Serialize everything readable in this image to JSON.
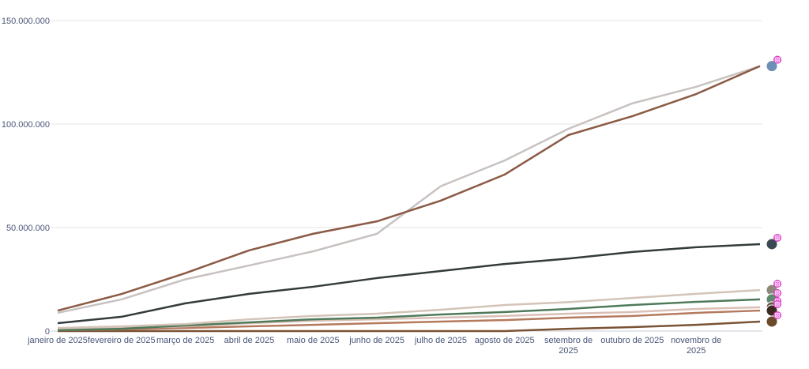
{
  "chart_data": {
    "type": "line",
    "title": "",
    "xlabel": "",
    "ylabel": "",
    "ylim": [
      0,
      150000000
    ],
    "y_ticks": [
      0,
      50000000,
      100000000,
      150000000
    ],
    "y_tick_labels": [
      "0",
      "50.000.000",
      "100.000.000",
      "150.000.000"
    ],
    "grid": true,
    "categories": [
      "janeiro de 2025",
      "fevereiro de 2025",
      "março de 2025",
      "abril de 2025",
      "maio de 2025",
      "junho de 2025",
      "julho de 2025",
      "agosto de 2025",
      "setembro de 2025",
      "outubro de 2025",
      "novembro de 2025",
      ""
    ],
    "category_label_lines": [
      [
        "janeiro de 2025"
      ],
      [
        "fevereiro de 2025"
      ],
      [
        "março de 2025"
      ],
      [
        "abril de 2025"
      ],
      [
        "maio de 2025"
      ],
      [
        "junho de 2025"
      ],
      [
        "julho de 2025"
      ],
      [
        "agosto de 2025"
      ],
      [
        "setembro de",
        "2025"
      ],
      [
        "outubro de 2025"
      ],
      [
        "novembro de",
        "2025"
      ],
      []
    ],
    "series": [
      {
        "color": "#8b5a45",
        "avatar_color": "#6d8fb5",
        "values": [
          9900000,
          17900000,
          28000000,
          39000000,
          47000000,
          53000000,
          63000000,
          75600000,
          94700000,
          103800000,
          114500000,
          128000000
        ]
      },
      {
        "color": "#c8c2c0",
        "avatar_color": "#6d8fb5",
        "values": [
          8800000,
          15300000,
          25000000,
          31700000,
          38500000,
          47000000,
          70000000,
          82400000,
          97700000,
          110000000,
          118000000,
          128000000
        ]
      },
      {
        "color": "#333b3b",
        "avatar_color": "#3a4a55",
        "values": [
          3800000,
          6900000,
          13400000,
          18000000,
          21400000,
          25600000,
          29000000,
          32400000,
          35000000,
          38200000,
          40500000,
          42000000
        ]
      },
      {
        "color": "#d4c4b8",
        "avatar_color": "#8d8a7a",
        "values": [
          1500000,
          2300000,
          3400000,
          5700000,
          7300000,
          8400000,
          10300000,
          12600000,
          14000000,
          16000000,
          18000000,
          19800000
        ]
      },
      {
        "color": "#4f7a5a",
        "avatar_color": "#5c8a6a",
        "values": [
          400000,
          1100000,
          2700000,
          4200000,
          5700000,
          6500000,
          8000000,
          9200000,
          10700000,
          12600000,
          14100000,
          15300000
        ]
      },
      {
        "color": "#d9bfb6",
        "avatar_color": "#6a5a50",
        "values": [
          800000,
          1500000,
          2300000,
          3800000,
          5000000,
          5700000,
          6500000,
          7300000,
          8400000,
          9200000,
          10700000,
          11500000
        ]
      },
      {
        "color": "#b57a5e",
        "avatar_color": "#3a2a22",
        "values": [
          400000,
          800000,
          1500000,
          2300000,
          3000000,
          3800000,
          4600000,
          5300000,
          6500000,
          7300000,
          8800000,
          9900000
        ]
      },
      {
        "color": "#7a5234",
        "avatar_color": "#6a4a2a",
        "values": [
          0,
          0,
          0,
          0,
          0,
          0,
          0,
          0,
          1100000,
          1900000,
          3000000,
          4600000
        ]
      }
    ],
    "end_badge_icon": "instagram-icon",
    "badge_color": "#e040c8"
  }
}
